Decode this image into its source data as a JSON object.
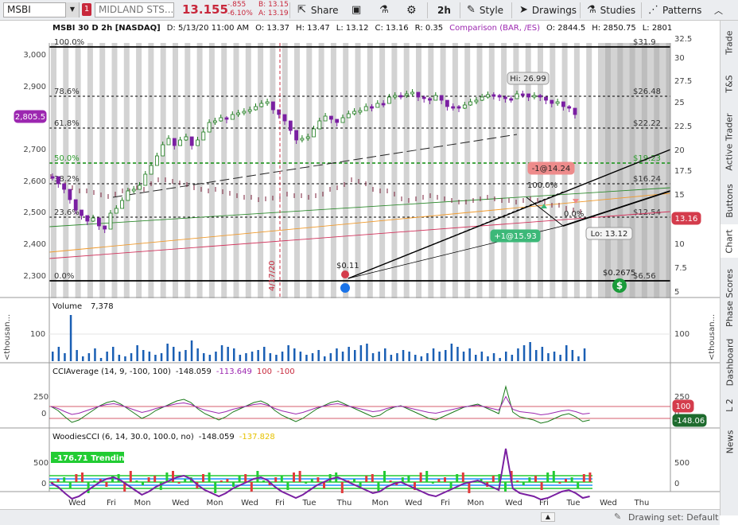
{
  "toolbar": {
    "symbol": "MSBI",
    "linked_badge": "1",
    "company_name": "MIDLAND STS...",
    "last_price": "13.155",
    "change": "-.855",
    "change_pct": "-6.10%",
    "bid": "B: 13.15",
    "ask": "A: 13.19",
    "share_label": "Share",
    "interval": "2h",
    "style_label": "Style",
    "drawings_label": "Drawings",
    "studies_label": "Studies",
    "patterns_label": "Patterns"
  },
  "chart_header": {
    "title": "MSBI 30 D 2h [NASDAQ]",
    "datetime": "D: 5/13/20 11:00 AM",
    "open": "O: 13.37",
    "high": "H: 13.47",
    "low": "L: 13.12",
    "close": "C: 13.16",
    "range": "R: 0.35",
    "comparison": "Comparison (BAR, /ES)",
    "cmp_open": "O: 2844.5",
    "cmp_high": "H: 2850.75",
    "cmp_low": "L: 2801"
  },
  "price_axis_right": [
    "32.5",
    "30",
    "27.5",
    "25",
    "22.5",
    "20",
    "17.5",
    "15",
    "12.5",
    "10",
    "7.5",
    "5"
  ],
  "price_axis_left": [
    "3,000",
    "2,900",
    "2,800",
    "2,700",
    "2,600",
    "2,500",
    "2,400",
    "2,300"
  ],
  "fib_levels": [
    {
      "pct": "100.0%",
      "price": "$31.9"
    },
    {
      "pct": "78.6%",
      "price": "$26.48"
    },
    {
      "pct": "61.8%",
      "price": "$22.22"
    },
    {
      "pct": "50.0%",
      "price": "$19.23"
    },
    {
      "pct": "38.2%",
      "price": "$16.24"
    },
    {
      "pct": "23.6%",
      "price": "$12.54"
    },
    {
      "pct": "0.0%",
      "price": "$6.56"
    }
  ],
  "markers": {
    "comparison_price": "2,805.5",
    "current_price": "13.16",
    "hi_label": "Hi: 26.99",
    "lo_label": "Lo: 13.12",
    "sell_label": "-1@14.24",
    "buy_label": "+1@15.93",
    "dividend_left": "$0.11",
    "dividend_right": "$0.2675",
    "date_marker": "4/17/20",
    "pct100": "100.0%",
    "pct0": "0.0%"
  },
  "volume": {
    "title": "Volume",
    "value": "7,378",
    "axis_label": "<thousan...",
    "tick": "100"
  },
  "cci": {
    "title": "CCIAverage (14, 9, -100, 100)",
    "v1": "-148.059",
    "v2": "-113.649",
    "v3": "100",
    "v4": "-100",
    "ticks": [
      "250",
      "0"
    ],
    "level_label": "100",
    "current_label": "-148.06"
  },
  "woodies": {
    "title": "WoodiesCCI (6, 14, 30.0, 100.0, no)",
    "v1": "-148.059",
    "v2": "-137.828",
    "trend_label": "-176.71 Trending",
    "ticks": [
      "500",
      "0"
    ]
  },
  "time_axis": [
    "Wed",
    "Fri",
    "Mon",
    "Wed",
    "Mon",
    "Wed",
    "Fri",
    "Tue",
    "Thu",
    "Mon",
    "Wed",
    "Fri",
    "Mon",
    "Wed",
    "Fri",
    "Tue",
    "Wed",
    "Thu"
  ],
  "sidebar_tabs": [
    "Trade",
    "T&S",
    "Active Trader",
    "Buttons",
    "Chart",
    "Phase Scores",
    "Dashboard",
    "L 2",
    "News"
  ],
  "status": "Drawing set: Default",
  "colors": {
    "down": "#c8283c",
    "up": "#1a7a1a",
    "volume": "#1a5fb4",
    "cci": "#1a7a1a",
    "cci_avg": "#9c27b0",
    "trend_badge": "#22cc33",
    "buy": "#3cb878"
  }
}
